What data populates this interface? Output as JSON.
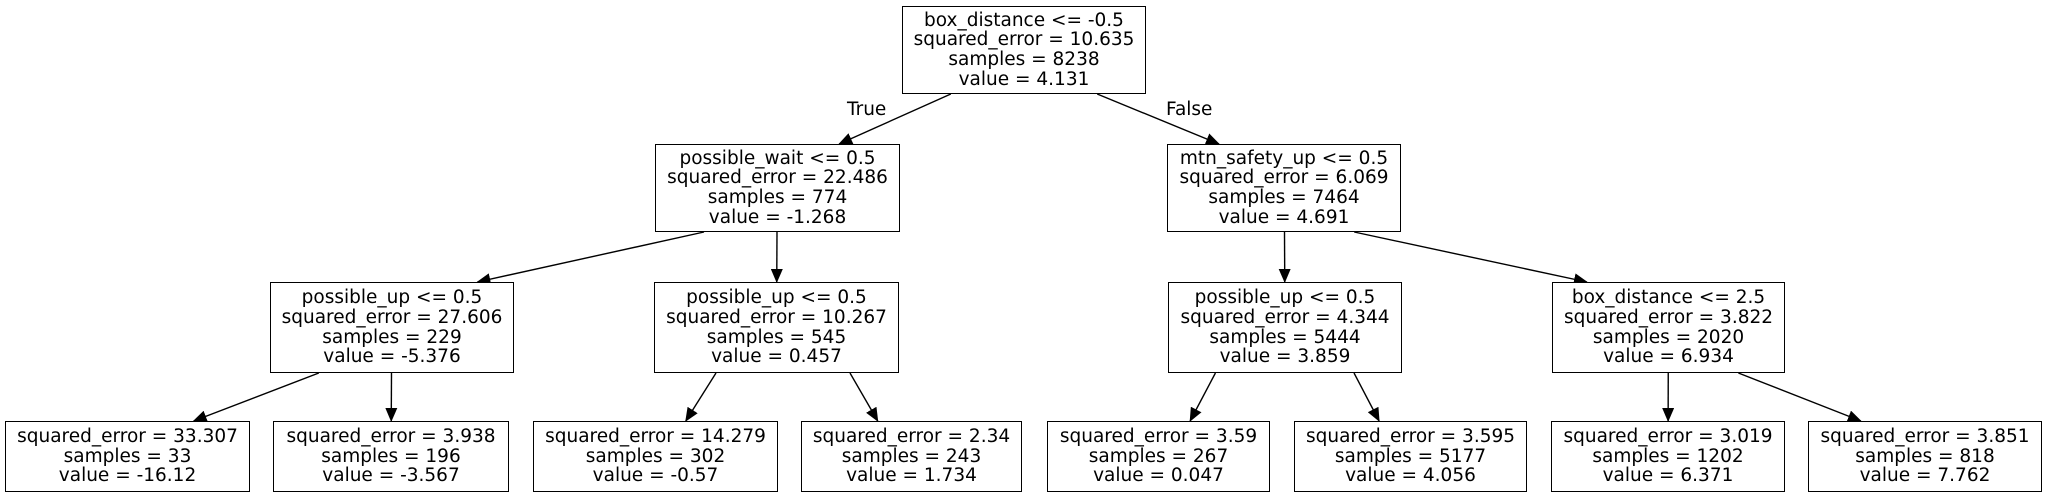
{
  "tree": {
    "branch_labels": {
      "true_label": "True",
      "false_label": "False"
    },
    "nodes": {
      "root": {
        "lines": [
          "box_distance <= -0.5",
          "squared_error = 10.635",
          "samples = 8238",
          "value = 4.131"
        ]
      },
      "n_l": {
        "lines": [
          "possible_wait <= 0.5",
          "squared_error = 22.486",
          "samples = 774",
          "value = -1.268"
        ]
      },
      "n_r": {
        "lines": [
          "mtn_safety_up <= 0.5",
          "squared_error = 6.069",
          "samples = 7464",
          "value = 4.691"
        ]
      },
      "n_ll": {
        "lines": [
          "possible_up <= 0.5",
          "squared_error = 27.606",
          "samples = 229",
          "value = -5.376"
        ]
      },
      "n_lr": {
        "lines": [
          "possible_up <= 0.5",
          "squared_error = 10.267",
          "samples = 545",
          "value = 0.457"
        ]
      },
      "n_rl": {
        "lines": [
          "possible_up <= 0.5",
          "squared_error = 4.344",
          "samples = 5444",
          "value = 3.859"
        ]
      },
      "n_rr": {
        "lines": [
          "box_distance <= 2.5",
          "squared_error = 3.822",
          "samples = 2020",
          "value = 6.934"
        ]
      },
      "leaf_1": {
        "lines": [
          "squared_error = 33.307",
          "samples = 33",
          "value = -16.12"
        ]
      },
      "leaf_2": {
        "lines": [
          "squared_error = 3.938",
          "samples = 196",
          "value = -3.567"
        ]
      },
      "leaf_3": {
        "lines": [
          "squared_error = 14.279",
          "samples = 302",
          "value = -0.57"
        ]
      },
      "leaf_4": {
        "lines": [
          "squared_error = 2.34",
          "samples = 243",
          "value = 1.734"
        ]
      },
      "leaf_5": {
        "lines": [
          "squared_error = 3.59",
          "samples = 267",
          "value = 0.047"
        ]
      },
      "leaf_6": {
        "lines": [
          "squared_error = 3.595",
          "samples = 5177",
          "value = 4.056"
        ]
      },
      "leaf_7": {
        "lines": [
          "squared_error = 3.019",
          "samples = 1202",
          "value = 6.371"
        ]
      },
      "leaf_8": {
        "lines": [
          "squared_error = 3.851",
          "samples = 818",
          "value = 7.762"
        ]
      }
    },
    "edges": [
      {
        "from": "root",
        "to": "n_l"
      },
      {
        "from": "root",
        "to": "n_r"
      },
      {
        "from": "n_l",
        "to": "n_ll"
      },
      {
        "from": "n_l",
        "to": "n_lr"
      },
      {
        "from": "n_r",
        "to": "n_rl"
      },
      {
        "from": "n_r",
        "to": "n_rr"
      },
      {
        "from": "n_ll",
        "to": "leaf_1"
      },
      {
        "from": "n_ll",
        "to": "leaf_2"
      },
      {
        "from": "n_lr",
        "to": "leaf_3"
      },
      {
        "from": "n_lr",
        "to": "leaf_4"
      },
      {
        "from": "n_rl",
        "to": "leaf_5"
      },
      {
        "from": "n_rl",
        "to": "leaf_6"
      },
      {
        "from": "n_rr",
        "to": "leaf_7"
      },
      {
        "from": "n_rr",
        "to": "leaf_8"
      }
    ]
  }
}
